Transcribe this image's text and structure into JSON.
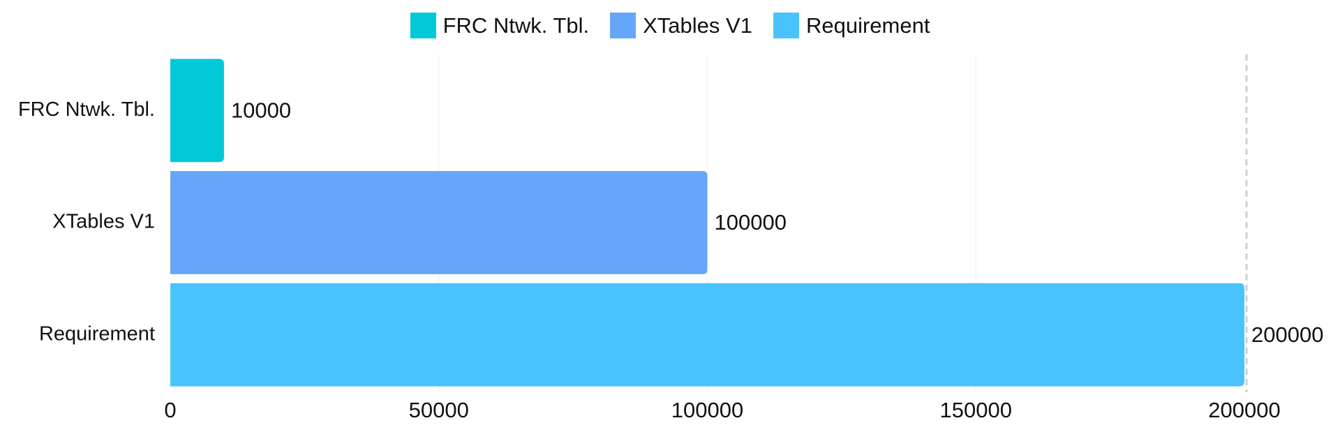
{
  "chart_data": {
    "type": "bar",
    "orientation": "horizontal",
    "categories": [
      "FRC Ntwk. Tbl.",
      "XTables V1",
      "Requirement"
    ],
    "values": [
      10000,
      100000,
      200000
    ],
    "colors": [
      "#00C9D9",
      "#66A6F8",
      "#4AC3FC"
    ],
    "legend": [
      "FRC Ntwk. Tbl.",
      "XTables V1",
      "Requirement"
    ],
    "legend_position": "top-center",
    "xlim": [
      0,
      200000
    ],
    "xticks": [
      "0",
      "50000",
      "100000",
      "150000",
      "200000"
    ],
    "reference_line": 200000,
    "grid": true,
    "data_labels": true,
    "title": "",
    "xlabel": "",
    "ylabel": ""
  }
}
